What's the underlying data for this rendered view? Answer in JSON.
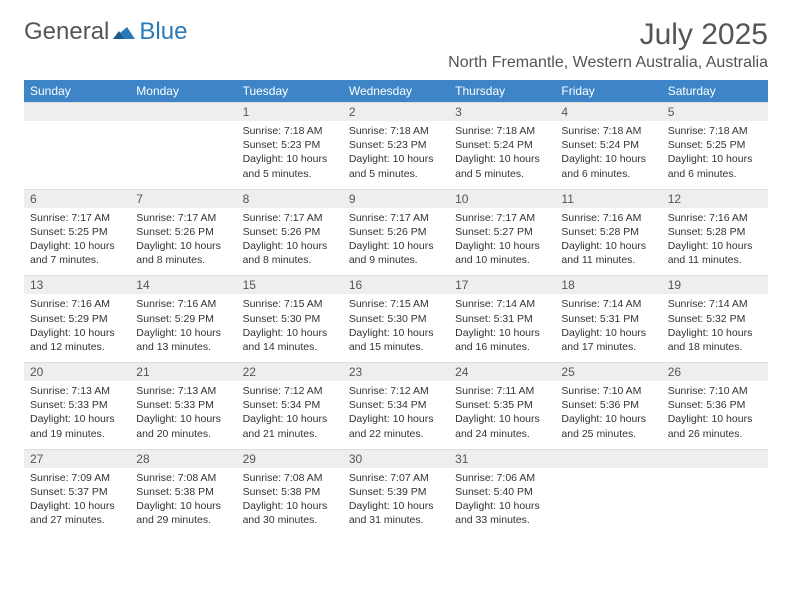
{
  "logo": {
    "text_gray": "General",
    "text_blue": "Blue",
    "icon_color": "#2a7ab8"
  },
  "title": "July 2025",
  "location": "North Fremantle, Western Australia, Australia",
  "colors": {
    "header_bg": "#3d85c6",
    "header_fg": "#ffffff",
    "daynum_bg": "#eeeeee",
    "text": "#333333",
    "muted": "#555555"
  },
  "day_names": [
    "Sunday",
    "Monday",
    "Tuesday",
    "Wednesday",
    "Thursday",
    "Friday",
    "Saturday"
  ],
  "weeks": [
    {
      "nums": [
        "",
        "",
        "1",
        "2",
        "3",
        "4",
        "5"
      ],
      "cells": [
        null,
        null,
        {
          "sunrise": "Sunrise: 7:18 AM",
          "sunset": "Sunset: 5:23 PM",
          "day1": "Daylight: 10 hours",
          "day2": "and 5 minutes."
        },
        {
          "sunrise": "Sunrise: 7:18 AM",
          "sunset": "Sunset: 5:23 PM",
          "day1": "Daylight: 10 hours",
          "day2": "and 5 minutes."
        },
        {
          "sunrise": "Sunrise: 7:18 AM",
          "sunset": "Sunset: 5:24 PM",
          "day1": "Daylight: 10 hours",
          "day2": "and 5 minutes."
        },
        {
          "sunrise": "Sunrise: 7:18 AM",
          "sunset": "Sunset: 5:24 PM",
          "day1": "Daylight: 10 hours",
          "day2": "and 6 minutes."
        },
        {
          "sunrise": "Sunrise: 7:18 AM",
          "sunset": "Sunset: 5:25 PM",
          "day1": "Daylight: 10 hours",
          "day2": "and 6 minutes."
        }
      ]
    },
    {
      "nums": [
        "6",
        "7",
        "8",
        "9",
        "10",
        "11",
        "12"
      ],
      "cells": [
        {
          "sunrise": "Sunrise: 7:17 AM",
          "sunset": "Sunset: 5:25 PM",
          "day1": "Daylight: 10 hours",
          "day2": "and 7 minutes."
        },
        {
          "sunrise": "Sunrise: 7:17 AM",
          "sunset": "Sunset: 5:26 PM",
          "day1": "Daylight: 10 hours",
          "day2": "and 8 minutes."
        },
        {
          "sunrise": "Sunrise: 7:17 AM",
          "sunset": "Sunset: 5:26 PM",
          "day1": "Daylight: 10 hours",
          "day2": "and 8 minutes."
        },
        {
          "sunrise": "Sunrise: 7:17 AM",
          "sunset": "Sunset: 5:26 PM",
          "day1": "Daylight: 10 hours",
          "day2": "and 9 minutes."
        },
        {
          "sunrise": "Sunrise: 7:17 AM",
          "sunset": "Sunset: 5:27 PM",
          "day1": "Daylight: 10 hours",
          "day2": "and 10 minutes."
        },
        {
          "sunrise": "Sunrise: 7:16 AM",
          "sunset": "Sunset: 5:28 PM",
          "day1": "Daylight: 10 hours",
          "day2": "and 11 minutes."
        },
        {
          "sunrise": "Sunrise: 7:16 AM",
          "sunset": "Sunset: 5:28 PM",
          "day1": "Daylight: 10 hours",
          "day2": "and 11 minutes."
        }
      ]
    },
    {
      "nums": [
        "13",
        "14",
        "15",
        "16",
        "17",
        "18",
        "19"
      ],
      "cells": [
        {
          "sunrise": "Sunrise: 7:16 AM",
          "sunset": "Sunset: 5:29 PM",
          "day1": "Daylight: 10 hours",
          "day2": "and 12 minutes."
        },
        {
          "sunrise": "Sunrise: 7:16 AM",
          "sunset": "Sunset: 5:29 PM",
          "day1": "Daylight: 10 hours",
          "day2": "and 13 minutes."
        },
        {
          "sunrise": "Sunrise: 7:15 AM",
          "sunset": "Sunset: 5:30 PM",
          "day1": "Daylight: 10 hours",
          "day2": "and 14 minutes."
        },
        {
          "sunrise": "Sunrise: 7:15 AM",
          "sunset": "Sunset: 5:30 PM",
          "day1": "Daylight: 10 hours",
          "day2": "and 15 minutes."
        },
        {
          "sunrise": "Sunrise: 7:14 AM",
          "sunset": "Sunset: 5:31 PM",
          "day1": "Daylight: 10 hours",
          "day2": "and 16 minutes."
        },
        {
          "sunrise": "Sunrise: 7:14 AM",
          "sunset": "Sunset: 5:31 PM",
          "day1": "Daylight: 10 hours",
          "day2": "and 17 minutes."
        },
        {
          "sunrise": "Sunrise: 7:14 AM",
          "sunset": "Sunset: 5:32 PM",
          "day1": "Daylight: 10 hours",
          "day2": "and 18 minutes."
        }
      ]
    },
    {
      "nums": [
        "20",
        "21",
        "22",
        "23",
        "24",
        "25",
        "26"
      ],
      "cells": [
        {
          "sunrise": "Sunrise: 7:13 AM",
          "sunset": "Sunset: 5:33 PM",
          "day1": "Daylight: 10 hours",
          "day2": "and 19 minutes."
        },
        {
          "sunrise": "Sunrise: 7:13 AM",
          "sunset": "Sunset: 5:33 PM",
          "day1": "Daylight: 10 hours",
          "day2": "and 20 minutes."
        },
        {
          "sunrise": "Sunrise: 7:12 AM",
          "sunset": "Sunset: 5:34 PM",
          "day1": "Daylight: 10 hours",
          "day2": "and 21 minutes."
        },
        {
          "sunrise": "Sunrise: 7:12 AM",
          "sunset": "Sunset: 5:34 PM",
          "day1": "Daylight: 10 hours",
          "day2": "and 22 minutes."
        },
        {
          "sunrise": "Sunrise: 7:11 AM",
          "sunset": "Sunset: 5:35 PM",
          "day1": "Daylight: 10 hours",
          "day2": "and 24 minutes."
        },
        {
          "sunrise": "Sunrise: 7:10 AM",
          "sunset": "Sunset: 5:36 PM",
          "day1": "Daylight: 10 hours",
          "day2": "and 25 minutes."
        },
        {
          "sunrise": "Sunrise: 7:10 AM",
          "sunset": "Sunset: 5:36 PM",
          "day1": "Daylight: 10 hours",
          "day2": "and 26 minutes."
        }
      ]
    },
    {
      "nums": [
        "27",
        "28",
        "29",
        "30",
        "31",
        "",
        ""
      ],
      "cells": [
        {
          "sunrise": "Sunrise: 7:09 AM",
          "sunset": "Sunset: 5:37 PM",
          "day1": "Daylight: 10 hours",
          "day2": "and 27 minutes."
        },
        {
          "sunrise": "Sunrise: 7:08 AM",
          "sunset": "Sunset: 5:38 PM",
          "day1": "Daylight: 10 hours",
          "day2": "and 29 minutes."
        },
        {
          "sunrise": "Sunrise: 7:08 AM",
          "sunset": "Sunset: 5:38 PM",
          "day1": "Daylight: 10 hours",
          "day2": "and 30 minutes."
        },
        {
          "sunrise": "Sunrise: 7:07 AM",
          "sunset": "Sunset: 5:39 PM",
          "day1": "Daylight: 10 hours",
          "day2": "and 31 minutes."
        },
        {
          "sunrise": "Sunrise: 7:06 AM",
          "sunset": "Sunset: 5:40 PM",
          "day1": "Daylight: 10 hours",
          "day2": "and 33 minutes."
        },
        null,
        null
      ]
    }
  ]
}
